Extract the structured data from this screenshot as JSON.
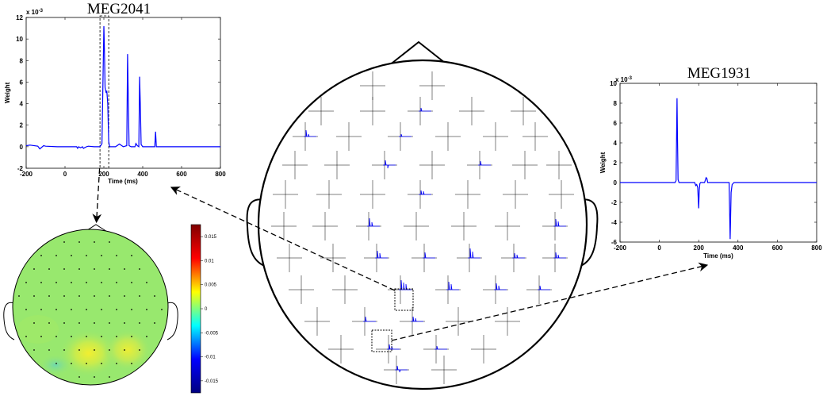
{
  "chart_data": [
    {
      "type": "line",
      "title": "MEG2041",
      "xlabel": "Time (ms)",
      "ylabel": "Weight",
      "y_exponent": "x 10",
      "y_exponent_power": "-3",
      "xlim": [
        -200,
        800
      ],
      "ylim": [
        -2,
        12
      ],
      "xticks": [
        "-200",
        "0",
        "200",
        "400",
        "600",
        "800"
      ],
      "yticks": [
        "-2",
        "0",
        "2",
        "4",
        "6",
        "8",
        "10",
        "12"
      ],
      "highlight_window_ms": [
        180,
        225
      ],
      "series_color": "#0000ff",
      "x": [
        -200,
        -180,
        -140,
        -130,
        -110,
        -100,
        -40,
        60,
        65,
        70,
        80,
        90,
        95,
        110,
        120,
        150,
        180,
        190,
        200,
        203,
        206,
        208,
        212,
        215,
        220,
        225,
        230,
        240,
        260,
        280,
        300,
        318,
        322,
        326,
        330,
        340,
        360,
        365,
        372,
        380,
        384,
        388,
        392,
        400,
        440,
        462,
        466,
        470,
        500,
        600,
        700,
        800
      ],
      "y": [
        0.1,
        0.15,
        0.05,
        -0.2,
        0.1,
        0.05,
        0,
        0,
        -0.15,
        0,
        -0.1,
        0,
        -0.15,
        0,
        0.05,
        0,
        0,
        0.3,
        11.2,
        9.0,
        5.5,
        5.3,
        5.0,
        5.2,
        4.0,
        0.5,
        0,
        0,
        0,
        0.25,
        0,
        0.1,
        8.6,
        4.0,
        0.1,
        0,
        0,
        0.3,
        0.1,
        0,
        6.5,
        3.5,
        0.2,
        0,
        0,
        0,
        1.4,
        0,
        0,
        0,
        0,
        0
      ]
    },
    {
      "type": "line",
      "title": "MEG1931",
      "xlabel": "Time (ms)",
      "ylabel": "Weight",
      "y_exponent": "x 10",
      "y_exponent_power": "-3",
      "xlim": [
        -200,
        800
      ],
      "ylim": [
        -6,
        10
      ],
      "xticks": [
        "-200",
        "0",
        "200",
        "400",
        "600",
        "800"
      ],
      "yticks": [
        "-6",
        "-4",
        "-2",
        "0",
        "2",
        "4",
        "6",
        "8",
        "10"
      ],
      "series_color": "#0000ff",
      "x": [
        -200,
        0,
        80,
        85,
        90,
        92,
        95,
        100,
        150,
        180,
        185,
        190,
        195,
        200,
        203,
        206,
        210,
        230,
        238,
        242,
        246,
        255,
        300,
        355,
        360,
        365,
        370,
        380,
        400,
        600,
        800
      ],
      "y": [
        0,
        0,
        0,
        0.2,
        8.5,
        5.0,
        0.3,
        0,
        0,
        0,
        -0.3,
        -0.2,
        -0.5,
        -2.6,
        -0.8,
        -0.1,
        0,
        0,
        0.5,
        0.4,
        0,
        0,
        0,
        0,
        -5.7,
        -1.0,
        -0.2,
        0,
        0,
        0,
        0
      ]
    },
    {
      "type": "heatmap",
      "colorbar_ticks": [
        "0.015",
        "0.01",
        "0.005",
        "0",
        "-0.005",
        "-0.01",
        "-0.015"
      ],
      "colorbar_range": [
        -0.0175,
        0.0175
      ],
      "colormap": [
        "#00007f",
        "#0000ff",
        "#00ffff",
        "#ffff00",
        "#ff0000",
        "#7f0000"
      ],
      "hotspots": [
        {
          "label": "left-occipital",
          "value": 0.0055
        },
        {
          "label": "right-occipital",
          "value": 0.0045
        },
        {
          "label": "left-inferior",
          "value": -0.003
        }
      ],
      "background_value": 0.0005
    }
  ],
  "colors": {
    "line": "#0000ff",
    "arrow": "#000000",
    "background": "#ffffff"
  }
}
